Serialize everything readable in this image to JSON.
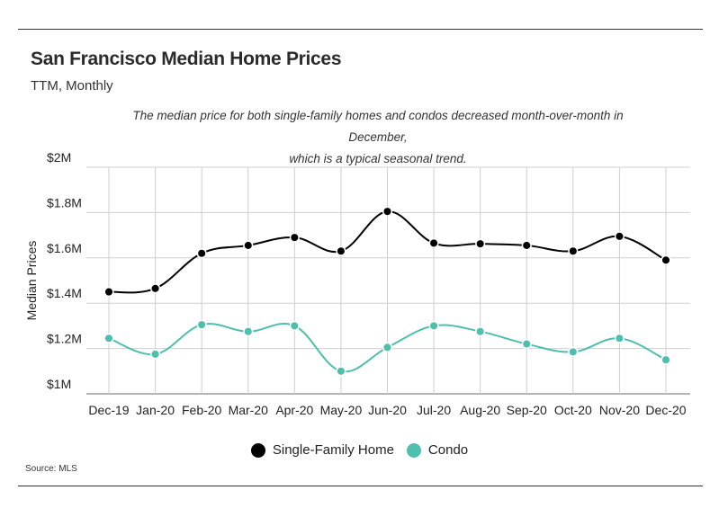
{
  "header": {
    "title": "San Francisco Median Home Prices",
    "subtitle": "TTM, Monthly",
    "annotation_line1": "The median price for both single-family homes and condos decreased month-over-month in December,",
    "annotation_line2": "which is a typical seasonal trend."
  },
  "footer": {
    "source": "Source:  MLS"
  },
  "chart_data": {
    "type": "line",
    "title": "San Francisco Median Home Prices",
    "subtitle": "TTM, Monthly",
    "xlabel": "",
    "ylabel": "Median Prices",
    "categories": [
      "Dec-19",
      "Jan-20",
      "Feb-20",
      "Mar-20",
      "Apr-20",
      "May-20",
      "Jun-20",
      "Jul-20",
      "Aug-20",
      "Sep-20",
      "Oct-20",
      "Nov-20",
      "Dec-20"
    ],
    "ylim": [
      1000000,
      2000000
    ],
    "yticks": [
      1000000,
      1200000,
      1400000,
      1600000,
      1800000,
      2000000
    ],
    "ytick_labels": [
      "$1M",
      "$1.2M",
      "$1.4M",
      "$1.6M",
      "$1.8M",
      "$2M"
    ],
    "grid": true,
    "legend_position": "bottom-center",
    "series": [
      {
        "name": "Single-Family Home",
        "color": "#000000",
        "values": [
          1450000,
          1465000,
          1620000,
          1655000,
          1690000,
          1630000,
          1805000,
          1665000,
          1662000,
          1655000,
          1630000,
          1695000,
          1590000
        ]
      },
      {
        "name": "Condo",
        "color": "#4dbfac",
        "values": [
          1245000,
          1175000,
          1305000,
          1275000,
          1300000,
          1100000,
          1205000,
          1300000,
          1275000,
          1220000,
          1185000,
          1245000,
          1150000
        ]
      }
    ]
  }
}
